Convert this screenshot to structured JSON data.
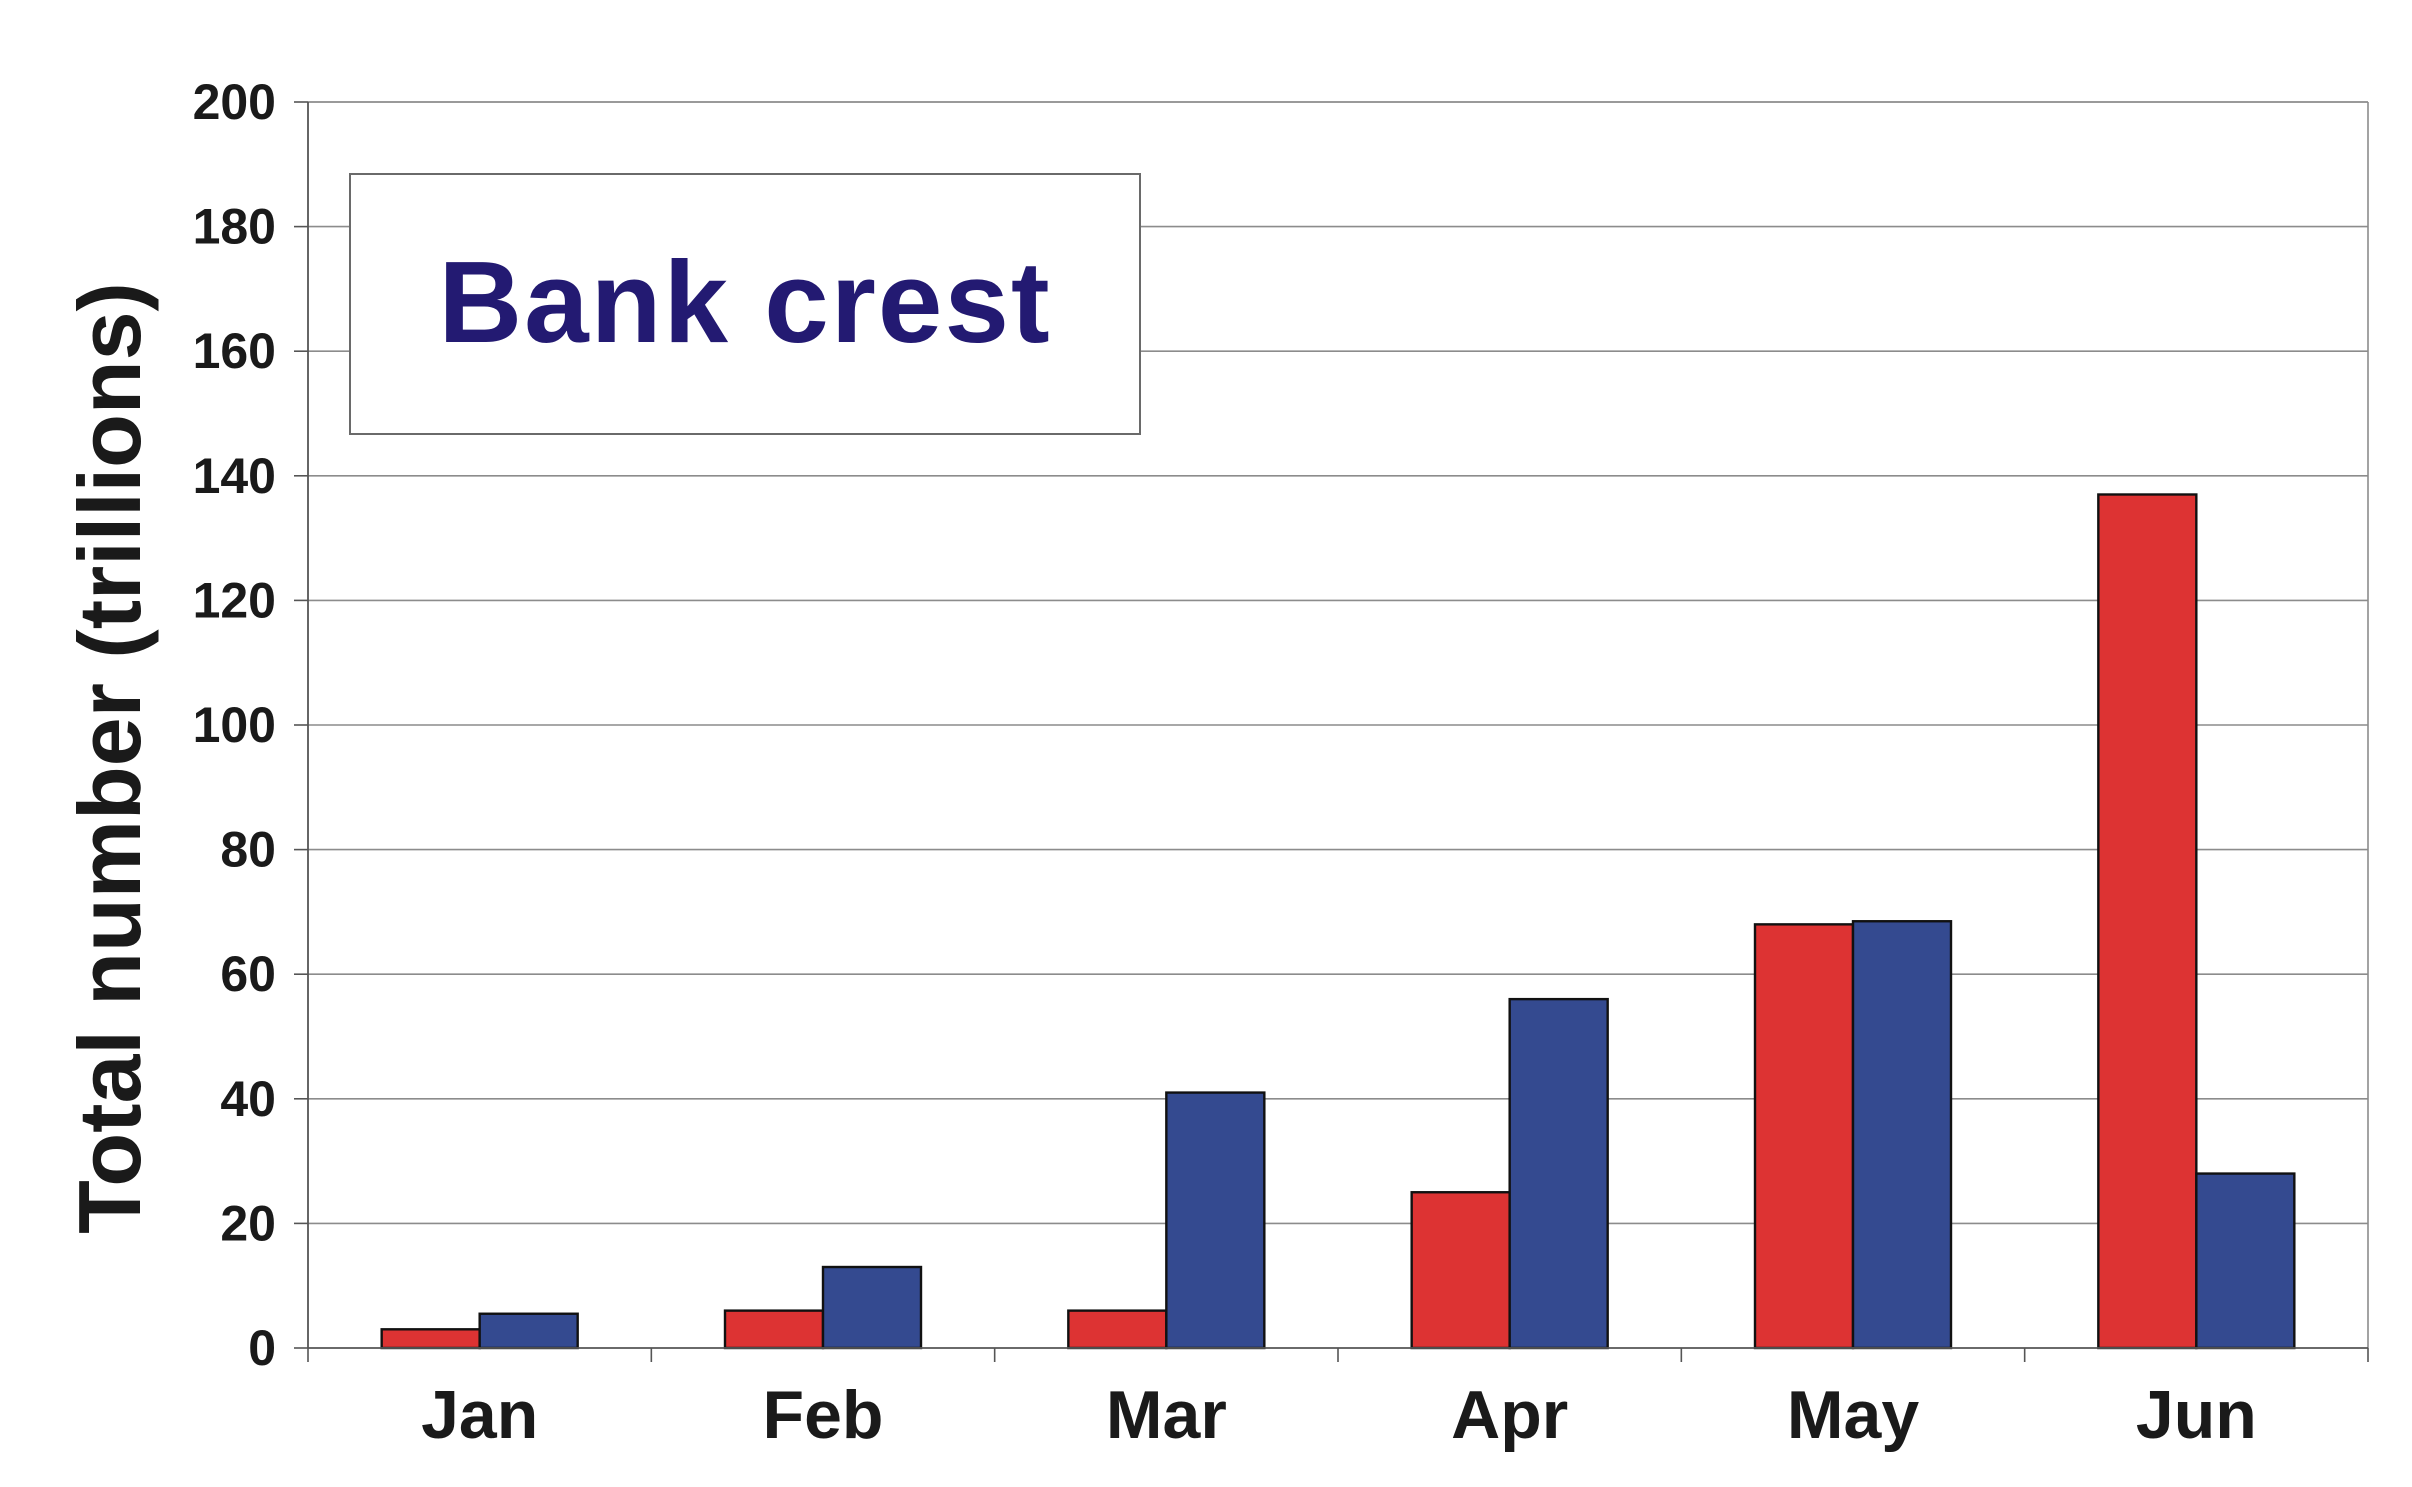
{
  "chart_data": {
    "type": "bar",
    "title": "Bank crest",
    "xlabel": "",
    "ylabel": "Total number (trillions)",
    "ylim": [
      0,
      200
    ],
    "yticks": [
      0,
      20,
      40,
      60,
      80,
      100,
      120,
      140,
      160,
      180,
      200
    ],
    "categories": [
      "Jan",
      "Feb",
      "Mar",
      "Apr",
      "May",
      "Jun"
    ],
    "series": [
      {
        "color": "#dd3333",
        "values": [
          3,
          6,
          6,
          25,
          68,
          137
        ]
      },
      {
        "color": "#344a90",
        "values": [
          5.5,
          13,
          41,
          56,
          68.5,
          28
        ]
      }
    ],
    "grid": true,
    "legend": "none",
    "title_color": "#231a72"
  }
}
